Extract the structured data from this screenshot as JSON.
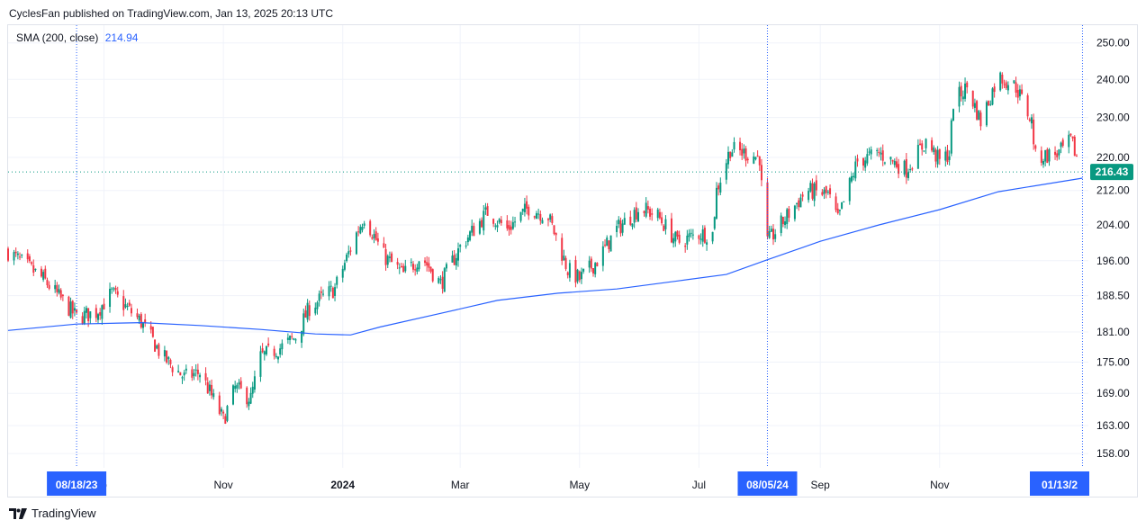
{
  "header": {
    "attribution": "CyclesFan published on TradingView.com, Jan 13, 2025 20:13 UTC"
  },
  "legend": {
    "indicator": "SMA (200, close)",
    "value": "214.94"
  },
  "footer": {
    "brand": "TradingView"
  },
  "colors": {
    "up": "#089981",
    "down": "#f23645",
    "sma": "#2962ff",
    "grid": "#f0f3fa",
    "marker": "#2962ff"
  },
  "chart_data": {
    "type": "candlestick",
    "y_axis": {
      "scale": "log",
      "range": [
        155.5,
        255
      ],
      "ticks": [
        "250.00",
        "240.00",
        "230.00",
        "220.00",
        "212.00",
        "204.00",
        "196.00",
        "188.50",
        "181.00",
        "175.00",
        "169.00",
        "163.00",
        "158.00"
      ]
    },
    "x_axis": {
      "labels": [
        {
          "text": "p",
          "date": "2023-09-01"
        },
        {
          "text": "Nov",
          "date": "2023-11-01"
        },
        {
          "text": "2024",
          "date": "2024-01-01",
          "bold": true
        },
        {
          "text": "Mar",
          "date": "2024-03-01"
        },
        {
          "text": "May",
          "date": "2024-05-01"
        },
        {
          "text": "Jul",
          "date": "2024-07-01"
        },
        {
          "text": "Sep",
          "date": "2024-09-01"
        },
        {
          "text": "Nov",
          "date": "2024-11-01"
        }
      ],
      "markers": [
        "08/18/23",
        "08/05/24",
        "01/13/2"
      ]
    },
    "last_price": {
      "label": "216.43",
      "value": 216.43
    },
    "sma_points": [
      [
        "2023-07-14",
        181.3
      ],
      [
        "2023-08-18",
        182.6
      ],
      [
        "2023-09-20",
        182.9
      ],
      [
        "2023-10-20",
        182.3
      ],
      [
        "2023-11-20",
        181.5
      ],
      [
        "2023-12-18",
        180.6
      ],
      [
        "2024-01-05",
        180.4
      ],
      [
        "2024-01-20",
        182.0
      ],
      [
        "2024-02-20",
        184.8
      ],
      [
        "2024-03-20",
        187.5
      ],
      [
        "2024-04-20",
        189.0
      ],
      [
        "2024-05-20",
        189.9
      ],
      [
        "2024-06-20",
        191.6
      ],
      [
        "2024-07-15",
        193.0
      ],
      [
        "2024-08-05",
        196.2
      ],
      [
        "2024-09-01",
        200.3
      ],
      [
        "2024-10-01",
        204.0
      ],
      [
        "2024-11-01",
        207.5
      ],
      [
        "2024-12-01",
        211.7
      ],
      [
        "2025-01-13",
        214.94
      ]
    ],
    "price_path": [
      [
        "2023-07-14",
        198
      ],
      [
        "2023-08-01",
        192
      ],
      [
        "2023-08-18",
        184
      ],
      [
        "2023-08-28",
        185
      ],
      [
        "2023-09-05",
        189
      ],
      [
        "2023-09-20",
        183
      ],
      [
        "2023-10-01",
        176
      ],
      [
        "2023-10-12",
        172
      ],
      [
        "2023-10-20",
        173
      ],
      [
        "2023-11-01",
        164
      ],
      [
        "2023-11-07",
        170
      ],
      [
        "2023-11-15",
        168
      ],
      [
        "2023-11-20",
        176
      ],
      [
        "2023-12-01",
        178
      ],
      [
        "2023-12-08",
        180
      ],
      [
        "2023-12-15",
        186
      ],
      [
        "2023-12-28",
        190
      ],
      [
        "2024-01-08",
        202
      ],
      [
        "2024-01-12",
        206
      ],
      [
        "2024-01-22",
        197
      ],
      [
        "2024-02-01",
        193
      ],
      [
        "2024-02-10",
        197
      ],
      [
        "2024-02-20",
        191
      ],
      [
        "2024-03-01",
        199
      ],
      [
        "2024-03-15",
        207
      ],
      [
        "2024-03-25",
        203
      ],
      [
        "2024-04-05",
        208
      ],
      [
        "2024-04-15",
        206
      ],
      [
        "2024-04-25",
        194
      ],
      [
        "2024-05-01",
        192
      ],
      [
        "2024-05-10",
        196
      ],
      [
        "2024-05-20",
        203
      ],
      [
        "2024-06-01",
        208
      ],
      [
        "2024-06-10",
        206
      ],
      [
        "2024-06-20",
        200
      ],
      [
        "2024-07-01",
        202
      ],
      [
        "2024-07-08",
        202
      ],
      [
        "2024-07-10",
        212
      ],
      [
        "2024-07-17",
        222
      ],
      [
        "2024-08-01",
        220
      ],
      [
        "2024-08-02",
        213
      ],
      [
        "2024-08-05",
        200
      ],
      [
        "2024-08-15",
        206
      ],
      [
        "2024-08-25",
        212
      ],
      [
        "2024-09-05",
        211
      ],
      [
        "2024-09-10",
        205
      ],
      [
        "2024-09-20",
        219
      ],
      [
        "2024-10-01",
        221
      ],
      [
        "2024-10-15",
        217
      ],
      [
        "2024-10-25",
        224
      ],
      [
        "2024-11-01",
        219
      ],
      [
        "2024-11-06",
        221
      ],
      [
        "2024-11-08",
        234
      ],
      [
        "2024-11-15",
        238
      ],
      [
        "2024-11-22",
        229
      ],
      [
        "2024-12-01",
        241
      ],
      [
        "2024-12-10",
        238
      ],
      [
        "2024-12-18",
        229
      ],
      [
        "2024-12-20",
        220
      ],
      [
        "2025-01-01",
        221
      ],
      [
        "2025-01-07",
        224
      ],
      [
        "2025-01-13",
        216.43
      ]
    ]
  }
}
